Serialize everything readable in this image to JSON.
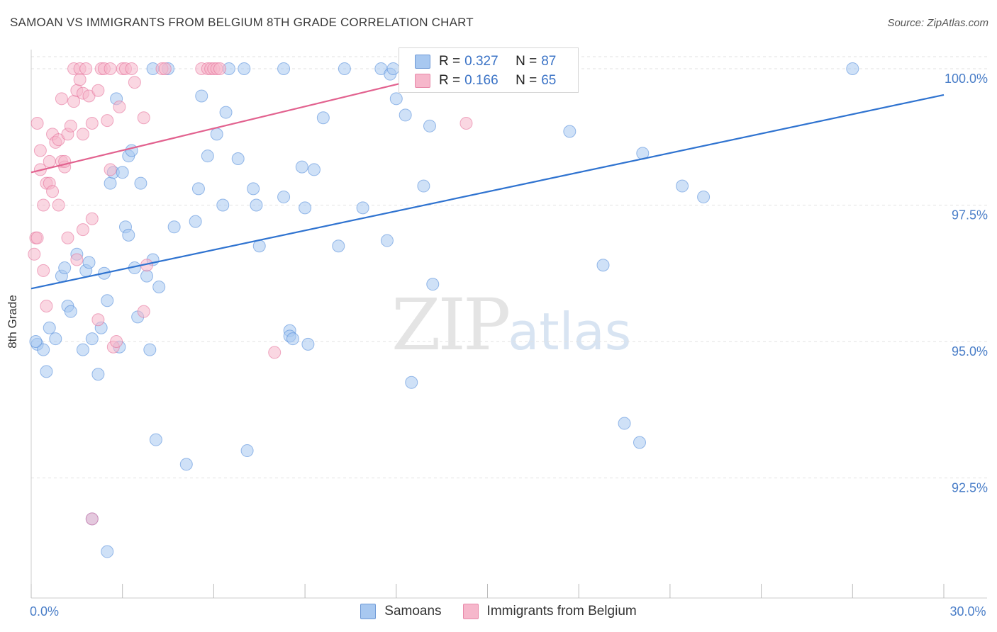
{
  "header": {
    "title": "SAMOAN VS IMMIGRANTS FROM BELGIUM 8TH GRADE CORRELATION CHART",
    "source": "Source: ZipAtlas.com"
  },
  "watermark": {
    "zip": "ZIP",
    "atlas": "atlas"
  },
  "legend": {
    "rows": [
      {
        "r_label": "R =",
        "r_value": "0.327",
        "n_label": "N =",
        "n_value": "87",
        "color": "#a8c8f0"
      },
      {
        "r_label": "R =",
        "r_value": "0.166",
        "n_label": "N =",
        "n_value": "65",
        "color": "#f6b7cb"
      }
    ]
  },
  "bottom_legend": {
    "items": [
      {
        "label": "Samoans",
        "color": "#a8c8f0"
      },
      {
        "label": "Immigrants from Belgium",
        "color": "#f6b7cb"
      }
    ]
  },
  "chart_data": {
    "type": "scatter",
    "title": "SAMOAN VS IMMIGRANTS FROM BELGIUM 8TH GRADE CORRELATION CHART",
    "xlabel": "",
    "ylabel": "8th Grade",
    "xlim": [
      0,
      30
    ],
    "ylim": [
      90.3,
      100.35
    ],
    "x_tick_labels": {
      "0": "0.0%",
      "30": "30.0%"
    },
    "y_ticks": [
      92.5,
      95.0,
      97.5,
      100.0
    ],
    "y_tick_labels": [
      "92.5%",
      "95.0%",
      "97.5%",
      "100.0%"
    ],
    "grid": true,
    "series": [
      {
        "name": "Samoans",
        "color": "#4a86d8",
        "fill": "#a8c8f0",
        "trend": {
          "x": [
            0,
            30
          ],
          "y": [
            95.97,
            99.52
          ]
        },
        "points": [
          [
            0.2,
            94.95
          ],
          [
            0.4,
            94.85
          ],
          [
            0.5,
            94.45
          ],
          [
            0.6,
            95.25
          ],
          [
            0.8,
            95.05
          ],
          [
            1.0,
            96.2
          ],
          [
            1.1,
            96.35
          ],
          [
            1.2,
            95.65
          ],
          [
            1.3,
            95.55
          ],
          [
            1.5,
            96.6
          ],
          [
            1.7,
            94.85
          ],
          [
            1.8,
            96.3
          ],
          [
            2.0,
            95.05
          ],
          [
            2.2,
            94.4
          ],
          [
            2.3,
            95.25
          ],
          [
            2.5,
            95.75
          ],
          [
            2.6,
            97.9
          ],
          [
            2.7,
            98.1
          ],
          [
            2.8,
            99.45
          ],
          [
            2.9,
            94.9
          ],
          [
            3.0,
            98.1
          ],
          [
            3.2,
            98.4
          ],
          [
            3.3,
            98.5
          ],
          [
            3.4,
            96.35
          ],
          [
            3.5,
            95.45
          ],
          [
            3.6,
            97.9
          ],
          [
            3.8,
            96.2
          ],
          [
            3.9,
            94.85
          ],
          [
            4.0,
            96.5
          ],
          [
            4.2,
            96.0
          ],
          [
            3.1,
            97.1
          ],
          [
            4.7,
            97.1
          ],
          [
            2.0,
            91.75
          ],
          [
            2.5,
            91.15
          ],
          [
            4.1,
            93.2
          ],
          [
            5.1,
            92.75
          ],
          [
            7.1,
            93.0
          ],
          [
            8.5,
            95.2
          ],
          [
            8.5,
            95.1
          ],
          [
            8.9,
            98.2
          ],
          [
            4.5,
            100.0
          ],
          [
            5.6,
            99.5
          ],
          [
            5.8,
            98.4
          ],
          [
            6.1,
            98.8
          ],
          [
            6.8,
            98.35
          ],
          [
            6.5,
            100.0
          ],
          [
            7.3,
            97.8
          ],
          [
            7.4,
            97.5
          ],
          [
            7.5,
            96.75
          ],
          [
            7.0,
            100.0
          ],
          [
            8.3,
            100.0
          ],
          [
            8.3,
            97.65
          ],
          [
            9.0,
            97.45
          ],
          [
            9.1,
            94.95
          ],
          [
            9.3,
            98.15
          ],
          [
            9.6,
            99.1
          ],
          [
            10.1,
            96.75
          ],
          [
            10.9,
            97.45
          ],
          [
            11.5,
            100.0
          ],
          [
            11.7,
            96.85
          ],
          [
            11.8,
            99.9
          ],
          [
            11.9,
            100.0
          ],
          [
            12.0,
            99.45
          ],
          [
            12.3,
            99.15
          ],
          [
            12.5,
            94.25
          ],
          [
            12.9,
            97.85
          ],
          [
            13.2,
            96.05
          ],
          [
            13.1,
            98.95
          ],
          [
            17.7,
            98.85
          ],
          [
            18.8,
            96.4
          ],
          [
            19.5,
            93.5
          ],
          [
            20.0,
            93.15
          ],
          [
            20.1,
            98.45
          ],
          [
            21.4,
            97.85
          ],
          [
            22.1,
            97.65
          ],
          [
            27.0,
            100.0
          ],
          [
            5.5,
            97.8
          ],
          [
            6.3,
            97.5
          ],
          [
            4.0,
            100.0
          ],
          [
            0.15,
            95.0
          ],
          [
            1.9,
            96.45
          ],
          [
            2.4,
            96.25
          ],
          [
            3.2,
            96.95
          ],
          [
            5.4,
            97.2
          ],
          [
            10.3,
            100.0
          ],
          [
            6.4,
            99.2
          ],
          [
            8.6,
            95.05
          ]
        ]
      },
      {
        "name": "Immigrants from Belgium",
        "color": "#e46a95",
        "fill": "#f6b7cb",
        "trend": {
          "x": [
            0,
            14.9
          ],
          "y": [
            98.1,
            100.1
          ]
        },
        "points": [
          [
            0.1,
            96.6
          ],
          [
            0.15,
            96.9
          ],
          [
            0.2,
            96.9
          ],
          [
            0.3,
            98.15
          ],
          [
            0.3,
            98.5
          ],
          [
            0.4,
            97.5
          ],
          [
            0.4,
            96.3
          ],
          [
            0.5,
            97.9
          ],
          [
            0.5,
            95.65
          ],
          [
            0.6,
            97.9
          ],
          [
            0.6,
            98.3
          ],
          [
            0.7,
            98.8
          ],
          [
            0.7,
            97.75
          ],
          [
            0.8,
            98.65
          ],
          [
            0.9,
            97.5
          ],
          [
            0.9,
            98.7
          ],
          [
            1.0,
            98.3
          ],
          [
            1.0,
            99.45
          ],
          [
            1.1,
            98.2
          ],
          [
            1.1,
            98.3
          ],
          [
            1.2,
            96.9
          ],
          [
            1.2,
            98.8
          ],
          [
            1.3,
            98.95
          ],
          [
            1.4,
            100.0
          ],
          [
            1.4,
            99.4
          ],
          [
            1.5,
            99.6
          ],
          [
            1.6,
            100.0
          ],
          [
            1.6,
            99.8
          ],
          [
            1.7,
            97.05
          ],
          [
            1.7,
            99.55
          ],
          [
            1.8,
            100.0
          ],
          [
            1.9,
            99.5
          ],
          [
            2.0,
            97.25
          ],
          [
            2.0,
            99.0
          ],
          [
            2.2,
            99.6
          ],
          [
            2.3,
            100.0
          ],
          [
            2.4,
            100.0
          ],
          [
            2.5,
            99.05
          ],
          [
            2.6,
            98.15
          ],
          [
            2.7,
            94.9
          ],
          [
            2.9,
            99.3
          ],
          [
            3.0,
            100.0
          ],
          [
            3.1,
            100.0
          ],
          [
            3.3,
            100.0
          ],
          [
            3.4,
            99.75
          ],
          [
            3.7,
            99.1
          ],
          [
            3.7,
            95.55
          ],
          [
            3.8,
            96.4
          ],
          [
            4.3,
            100.0
          ],
          [
            4.4,
            100.0
          ],
          [
            5.6,
            100.0
          ],
          [
            5.8,
            100.0
          ],
          [
            5.9,
            100.0
          ],
          [
            6.0,
            100.0
          ],
          [
            6.1,
            100.0
          ],
          [
            6.2,
            100.0
          ],
          [
            8.0,
            94.8
          ],
          [
            14.3,
            99.0
          ],
          [
            2.0,
            91.75
          ],
          [
            2.2,
            95.4
          ],
          [
            1.5,
            96.5
          ],
          [
            2.6,
            100.0
          ],
          [
            1.7,
            98.8
          ],
          [
            0.2,
            99.0
          ],
          [
            2.8,
            95.0
          ]
        ]
      }
    ]
  }
}
